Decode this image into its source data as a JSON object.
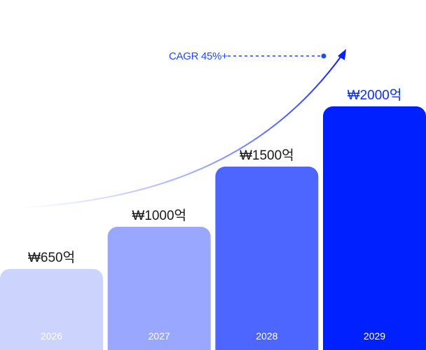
{
  "chart_data": {
    "type": "bar",
    "categories": [
      "2026",
      "2027",
      "2028",
      "2029"
    ],
    "values": [
      650,
      1000,
      1500,
      2000
    ],
    "data_labels": [
      "₩650억",
      "₩1000억",
      "₩1500억",
      "₩2000억"
    ],
    "bar_colors": [
      "#ccd3fd",
      "#99a7fe",
      "#4d66ff",
      "#0020ff"
    ],
    "label_colors": [
      "#1a1a1a",
      "#1a1a1a",
      "#1a1a1a",
      "#0a2cff"
    ],
    "title": "",
    "xlabel": "",
    "ylabel": "",
    "ylim": [
      0,
      2000
    ],
    "grid": false,
    "annotation": {
      "text": "CAGR 45%+",
      "color": "#1f4bff",
      "trend_arrow_color": "#0a1fff"
    }
  }
}
